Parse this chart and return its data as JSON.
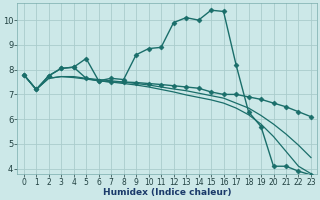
{
  "xlabel": "Humidex (Indice chaleur)",
  "bg_color": "#cce8e8",
  "grid_color": "#aacccc",
  "line_color": "#1a6e6a",
  "xlim": [
    -0.5,
    23.5
  ],
  "ylim": [
    3.8,
    10.7
  ],
  "yticks": [
    4,
    5,
    6,
    7,
    8,
    9,
    10
  ],
  "xticks": [
    0,
    1,
    2,
    3,
    4,
    5,
    6,
    7,
    8,
    9,
    10,
    11,
    12,
    13,
    14,
    15,
    16,
    17,
    18,
    19,
    20,
    21,
    22,
    23
  ],
  "lines": [
    {
      "x": [
        0,
        1,
        2,
        3,
        4,
        5,
        6,
        7,
        8,
        9,
        10,
        11,
        12,
        13,
        14,
        15,
        16,
        17,
        18,
        19,
        20,
        21,
        22,
        23
      ],
      "y": [
        7.8,
        7.2,
        7.75,
        8.05,
        8.1,
        8.45,
        7.55,
        7.65,
        7.6,
        8.6,
        8.85,
        8.9,
        9.9,
        10.1,
        10.0,
        10.4,
        10.35,
        8.2,
        6.3,
        5.7,
        4.1,
        4.1,
        3.9,
        3.75
      ],
      "marker": "D",
      "markersize": 2.5,
      "lw": 1.0
    },
    {
      "x": [
        0,
        1,
        2,
        3,
        4,
        5,
        6,
        7,
        8,
        9,
        10,
        11,
        12,
        13,
        14,
        15,
        16,
        17,
        18,
        19,
        20,
        21,
        22,
        23
      ],
      "y": [
        7.8,
        7.2,
        7.75,
        8.05,
        8.1,
        7.65,
        7.55,
        7.5,
        7.5,
        7.48,
        7.44,
        7.4,
        7.35,
        7.3,
        7.25,
        7.1,
        7.0,
        7.0,
        6.9,
        6.8,
        6.65,
        6.5,
        6.3,
        6.1
      ],
      "marker": "D",
      "markersize": 2.5,
      "lw": 1.0
    },
    {
      "x": [
        0,
        1,
        2,
        3,
        4,
        5,
        6,
        7,
        8,
        9,
        10,
        11,
        12,
        13,
        14,
        15,
        16,
        17,
        18,
        19,
        20,
        21,
        22,
        23
      ],
      "y": [
        7.8,
        7.2,
        7.65,
        7.72,
        7.72,
        7.65,
        7.6,
        7.55,
        7.5,
        7.44,
        7.38,
        7.3,
        7.22,
        7.15,
        7.05,
        6.95,
        6.85,
        6.65,
        6.45,
        6.15,
        5.8,
        5.4,
        4.95,
        4.45
      ],
      "marker": null,
      "markersize": 0,
      "lw": 0.9
    },
    {
      "x": [
        0,
        1,
        2,
        3,
        4,
        5,
        6,
        7,
        8,
        9,
        10,
        11,
        12,
        13,
        14,
        15,
        16,
        17,
        18,
        19,
        20,
        21,
        22,
        23
      ],
      "y": [
        7.8,
        7.2,
        7.65,
        7.72,
        7.68,
        7.62,
        7.55,
        7.5,
        7.44,
        7.38,
        7.3,
        7.2,
        7.1,
        6.98,
        6.88,
        6.78,
        6.65,
        6.45,
        6.18,
        5.8,
        5.3,
        4.7,
        4.1,
        3.8
      ],
      "marker": null,
      "markersize": 0,
      "lw": 0.9
    }
  ]
}
